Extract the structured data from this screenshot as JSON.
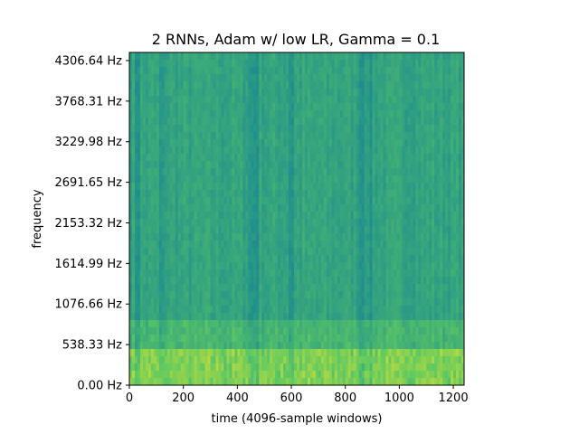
{
  "chart_data": {
    "type": "heatmap",
    "title": "2 RNNs, Adam w/ low LR, Gamma = 0.1",
    "xlabel": "time (4096-sample windows)",
    "ylabel": "frequency",
    "xlim": [
      0,
      1240
    ],
    "ylim": [
      0,
      4414.3
    ],
    "x_ticks": [
      0,
      200,
      400,
      600,
      800,
      1000,
      1200
    ],
    "x_tick_labels": [
      "0",
      "200",
      "400",
      "600",
      "800",
      "1000",
      "1200"
    ],
    "y_ticks": [
      0,
      538.33,
      1076.66,
      1614.99,
      2153.32,
      2691.65,
      3229.98,
      3768.31,
      4306.64
    ],
    "y_tick_labels": [
      "0.00 Hz",
      "538.33 Hz",
      "1076.66 Hz",
      "1614.99 Hz",
      "2153.32 Hz",
      "2691.65 Hz",
      "3229.98 Hz",
      "3768.31 Hz",
      "4306.64 Hz"
    ],
    "colormap": "viridis",
    "colors": {
      "background_mid": "#2a9a7f",
      "low_freq_hot": "#b5d83a",
      "dark_band": "#26828e"
    },
    "dark_time_bands": [
      30,
      120,
      450,
      470,
      600,
      860,
      890
    ],
    "grid": false,
    "legend": "none"
  }
}
